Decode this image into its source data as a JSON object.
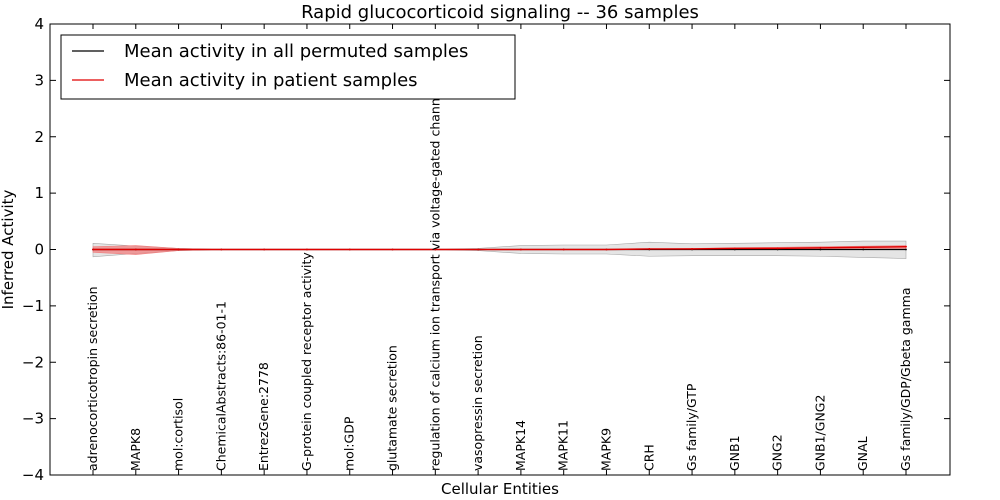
{
  "chart_data": {
    "type": "line",
    "title": "Rapid glucocorticoid signaling -- 36 samples",
    "xlabel": "Cellular Entities",
    "ylabel": "Inferred Activity",
    "ylim": [
      -4,
      4
    ],
    "yticks": [
      -4,
      -3,
      -2,
      -1,
      0,
      1,
      2,
      3,
      4
    ],
    "ytick_labels": [
      "−4",
      "−3",
      "−2",
      "−1",
      "0",
      "1",
      "2",
      "3",
      "4"
    ],
    "grid": false,
    "legend_position": "top-left",
    "categories": [
      "adrenocorticotropin secretion",
      "MAPK8",
      "mol:cortisol",
      "ChemicalAbstracts:86-01-1",
      "EntrezGene:2778",
      "G-protein coupled receptor activity",
      "mol:GDP",
      "glutamate secretion",
      "regulation of calcium ion transport via voltage-gated channel",
      "vasopressin secretion",
      "MAPK14",
      "MAPK11",
      "MAPK9",
      "CRH",
      "Gs family/GTP",
      "GNB1",
      "GNG2",
      "GNB1/GNG2",
      "GNAL",
      "Gs family/GDP/Gbeta gamma"
    ],
    "series": [
      {
        "name": "Mean activity in all permuted samples",
        "color": "#000000",
        "values": [
          0,
          0,
          0,
          0,
          0,
          0,
          0,
          0,
          0,
          0,
          0,
          0,
          0,
          0,
          0,
          0,
          0,
          0,
          0,
          0
        ],
        "band_lower": [
          -0.13,
          -0.07,
          -0.02,
          0,
          0,
          0,
          0,
          0,
          0,
          -0.02,
          -0.07,
          -0.08,
          -0.08,
          -0.12,
          -0.11,
          -0.11,
          -0.11,
          -0.12,
          -0.14,
          -0.16
        ],
        "band_upper": [
          0.11,
          0.06,
          0.02,
          0,
          0,
          0,
          0,
          0,
          0,
          0.02,
          0.07,
          0.08,
          0.08,
          0.13,
          0.1,
          0.11,
          0.12,
          0.13,
          0.15,
          0.15
        ],
        "band_color": "#d0d0d0"
      },
      {
        "name": "Mean activity in patient samples",
        "color": "#e00000",
        "values": [
          0,
          0,
          0,
          0,
          0,
          0,
          0,
          0,
          0,
          0,
          0,
          0,
          0,
          0.01,
          0.01,
          0.02,
          0.02,
          0.03,
          0.04,
          0.05
        ],
        "band_lower": [
          -0.05,
          -0.09,
          -0.02,
          0,
          0,
          0,
          0,
          0,
          0,
          0,
          0,
          0,
          0,
          0,
          0,
          0,
          0,
          0,
          0,
          0
        ],
        "band_upper": [
          0.05,
          0.07,
          0.02,
          0,
          0,
          0,
          0,
          0,
          0,
          0,
          0,
          0,
          0,
          0.01,
          0.02,
          0.03,
          0.04,
          0.05,
          0.06,
          0.07
        ],
        "band_color": "#f08080"
      }
    ]
  }
}
